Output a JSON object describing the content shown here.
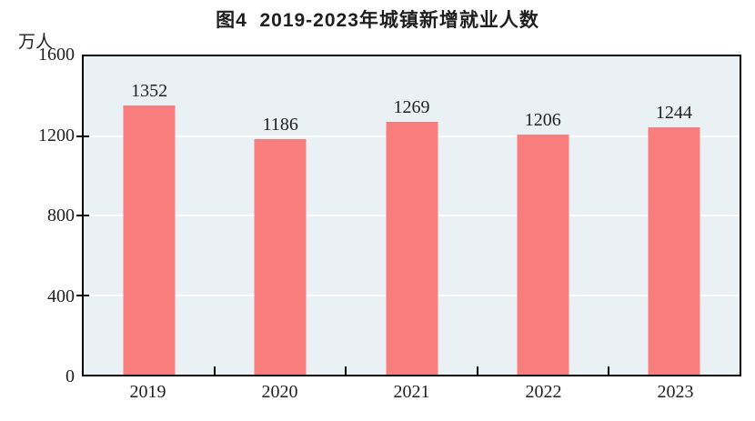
{
  "header": {
    "title": "图4  2019-2023年城镇新增就业人数"
  },
  "chart_data": {
    "type": "bar",
    "title": "图4  2019-2023年城镇新增就业人数",
    "unit_label": "万人",
    "categories": [
      "2019",
      "2020",
      "2021",
      "2022",
      "2023"
    ],
    "values": [
      1352,
      1186,
      1269,
      1206,
      1244
    ],
    "ylim": [
      0,
      1600
    ],
    "yticks": [
      0,
      400,
      800,
      1200,
      1600
    ],
    "xlabel": "",
    "ylabel": "万人",
    "grid": "horizontal",
    "legend_position": "none",
    "colors": {
      "bar": "#FB7E7E",
      "plot_background": "#EAF1F5",
      "grid_line": "#FFFFFF",
      "axis_border": "#000000",
      "text": "#1F1F1F"
    }
  }
}
